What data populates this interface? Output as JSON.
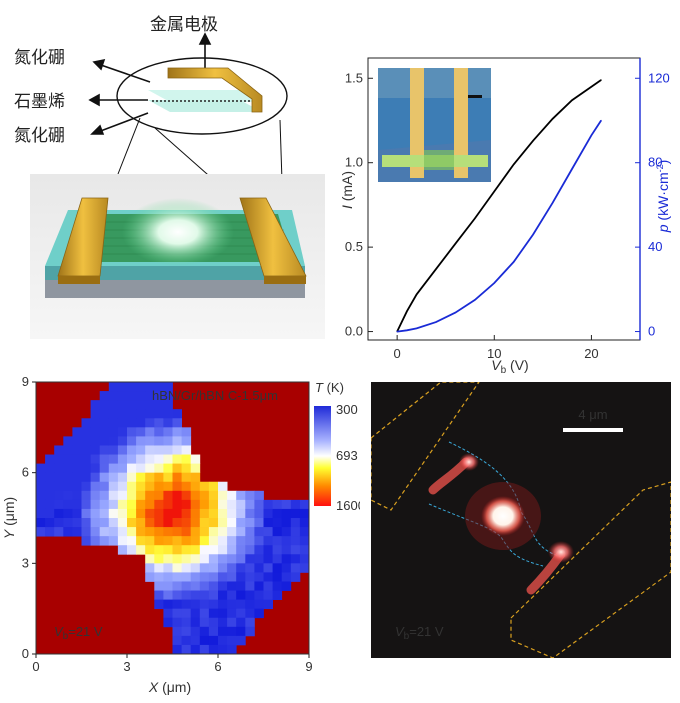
{
  "schematic": {
    "labels": [
      "金属电极",
      "氮化硼",
      "石墨烯",
      "氮化硼"
    ]
  },
  "iv_plot": {
    "chart_data": {
      "type": "line",
      "x": [
        0,
        1,
        2,
        4,
        6,
        8,
        10,
        12,
        14,
        16,
        18,
        20,
        21
      ],
      "series": [
        {
          "axis": "left",
          "color": "#000000",
          "values": [
            0,
            0.12,
            0.22,
            0.37,
            0.52,
            0.67,
            0.83,
            0.99,
            1.13,
            1.26,
            1.37,
            1.45,
            1.49
          ]
        },
        {
          "axis": "right",
          "color": "#1a2bd6",
          "values": [
            0,
            0.6,
            1.5,
            4.5,
            9,
            15,
            23,
            33,
            46,
            61,
            77,
            93,
            100
          ]
        }
      ],
      "x_ticks": [
        "0",
        "10",
        "20"
      ],
      "y_ticks": [
        "0.0",
        "0.5",
        "1.0",
        "1.5"
      ],
      "y2_ticks": [
        "0",
        "40",
        "80",
        "120"
      ],
      "xlim": [
        -3,
        25
      ],
      "ylim": [
        -0.05,
        1.62
      ],
      "y2lim": [
        -4,
        129.6
      ],
      "xlabel": {
        "main": "V",
        "sub": "b",
        "unit": " (V)"
      },
      "ylabel": {
        "main": "I",
        "unit": " (mA)"
      },
      "y2label": {
        "main": "p",
        "unit": " (kW·cm",
        "sup": "-2",
        "close": ")"
      }
    }
  },
  "thermal_map": {
    "title": "hBN/Gr/hBN C-1.5μm",
    "colorbar_label": "T (K)",
    "colorbar_ticks": [
      "300",
      "693",
      "1600"
    ],
    "x_ticks": [
      "0",
      "3",
      "6",
      "9"
    ],
    "y_ticks": [
      "0",
      "3",
      "6",
      "9"
    ],
    "xlabel": {
      "main": "X",
      "unit": " (μm)"
    },
    "ylabel": {
      "main": "Y",
      "unit": " (μm)"
    },
    "bias": {
      "main": "V",
      "sub": "b",
      "rest": "=21 V"
    }
  },
  "emission_image": {
    "scalebar": "4 μm",
    "bias": {
      "main": "V",
      "sub": "b",
      "rest": "=21 V"
    }
  }
}
